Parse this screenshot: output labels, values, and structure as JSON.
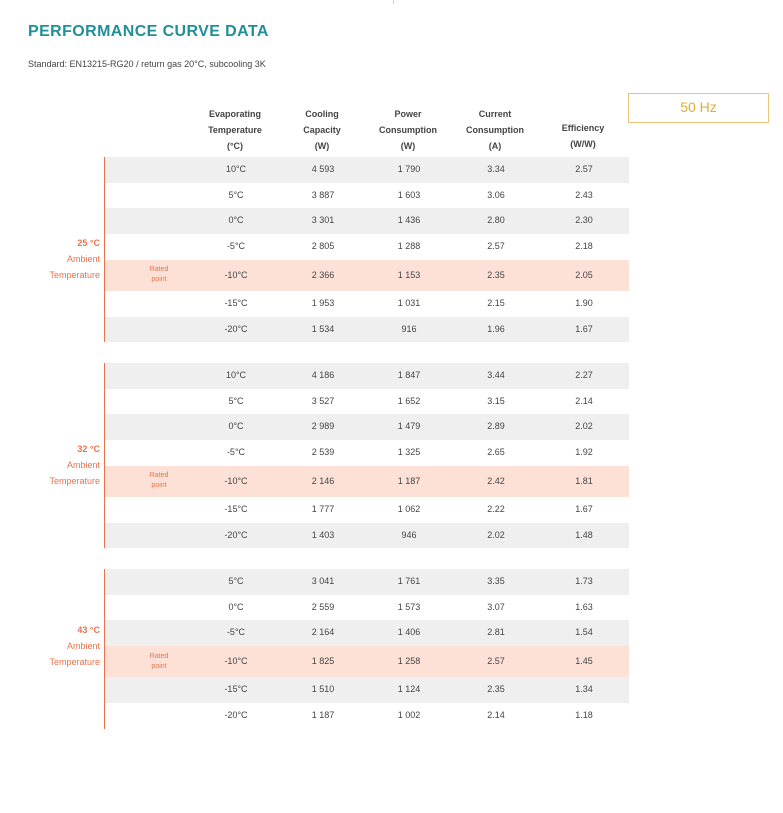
{
  "title": "PERFORMANCE CURVE DATA",
  "standard": "Standard: EN13215-RG20 / return gas 20°C, subcooling 3K",
  "frequency": "50 Hz",
  "rated_label": [
    "Rated",
    "point"
  ],
  "headers": [
    [
      "Evaporating",
      "Temperature",
      "(°C)"
    ],
    [
      "Cooling",
      "Capacity",
      "(W)"
    ],
    [
      "Power",
      "Consumption",
      "(W)"
    ],
    [
      "Current",
      "Consumption",
      "(A)"
    ],
    [
      "Efficiency",
      "(W/W)"
    ]
  ],
  "colors": {
    "accent": "#e8734e",
    "title": "#1f8f98",
    "hz": "#e5ac33",
    "shade": "#efefef",
    "rated": "#fde1d7"
  },
  "groups": [
    {
      "ambient": "25 °C",
      "ambient_label": [
        "Ambient",
        "Temperature"
      ],
      "rows": [
        {
          "evap": "10°C",
          "cooling": "4 593",
          "power": "1 790",
          "current": "3.34",
          "eff": "2.57",
          "rated": false
        },
        {
          "evap": "5°C",
          "cooling": "3 887",
          "power": "1 603",
          "current": "3.06",
          "eff": "2.43",
          "rated": false
        },
        {
          "evap": "0°C",
          "cooling": "3 301",
          "power": "1 436",
          "current": "2.80",
          "eff": "2.30",
          "rated": false
        },
        {
          "evap": "-5°C",
          "cooling": "2 805",
          "power": "1 288",
          "current": "2.57",
          "eff": "2.18",
          "rated": false
        },
        {
          "evap": "-10°C",
          "cooling": "2 366",
          "power": "1 153",
          "current": "2.35",
          "eff": "2.05",
          "rated": true
        },
        {
          "evap": "-15°C",
          "cooling": "1 953",
          "power": "1 031",
          "current": "2.15",
          "eff": "1.90",
          "rated": false
        },
        {
          "evap": "-20°C",
          "cooling": "1 534",
          "power": "916",
          "current": "1.96",
          "eff": "1.67",
          "rated": false
        }
      ]
    },
    {
      "ambient": "32 °C",
      "ambient_label": [
        "Ambient",
        "Temperature"
      ],
      "rows": [
        {
          "evap": "10°C",
          "cooling": "4 186",
          "power": "1 847",
          "current": "3.44",
          "eff": "2.27",
          "rated": false
        },
        {
          "evap": "5°C",
          "cooling": "3 527",
          "power": "1 652",
          "current": "3.15",
          "eff": "2.14",
          "rated": false
        },
        {
          "evap": "0°C",
          "cooling": "2 989",
          "power": "1 479",
          "current": "2.89",
          "eff": "2.02",
          "rated": false
        },
        {
          "evap": "-5°C",
          "cooling": "2 539",
          "power": "1 325",
          "current": "2.65",
          "eff": "1.92",
          "rated": false
        },
        {
          "evap": "-10°C",
          "cooling": "2 146",
          "power": "1 187",
          "current": "2.42",
          "eff": "1.81",
          "rated": true
        },
        {
          "evap": "-15°C",
          "cooling": "1 777",
          "power": "1 062",
          "current": "2.22",
          "eff": "1.67",
          "rated": false
        },
        {
          "evap": "-20°C",
          "cooling": "1 403",
          "power": "946",
          "current": "2.02",
          "eff": "1.48",
          "rated": false
        }
      ]
    },
    {
      "ambient": "43 °C",
      "ambient_label": [
        "Ambient",
        "Temperature"
      ],
      "rows": [
        {
          "evap": "5°C",
          "cooling": "3 041",
          "power": "1 761",
          "current": "3.35",
          "eff": "1.73",
          "rated": false
        },
        {
          "evap": "0°C",
          "cooling": "2 559",
          "power": "1 573",
          "current": "3.07",
          "eff": "1.63",
          "rated": false
        },
        {
          "evap": "-5°C",
          "cooling": "2 164",
          "power": "1 406",
          "current": "2.81",
          "eff": "1.54",
          "rated": false
        },
        {
          "evap": "-10°C",
          "cooling": "1 825",
          "power": "1 258",
          "current": "2.57",
          "eff": "1.45",
          "rated": true
        },
        {
          "evap": "-15°C",
          "cooling": "1 510",
          "power": "1 124",
          "current": "2.35",
          "eff": "1.34",
          "rated": false
        },
        {
          "evap": "-20°C",
          "cooling": "1 187",
          "power": "1 002",
          "current": "2.14",
          "eff": "1.18",
          "rated": false
        }
      ]
    }
  ]
}
